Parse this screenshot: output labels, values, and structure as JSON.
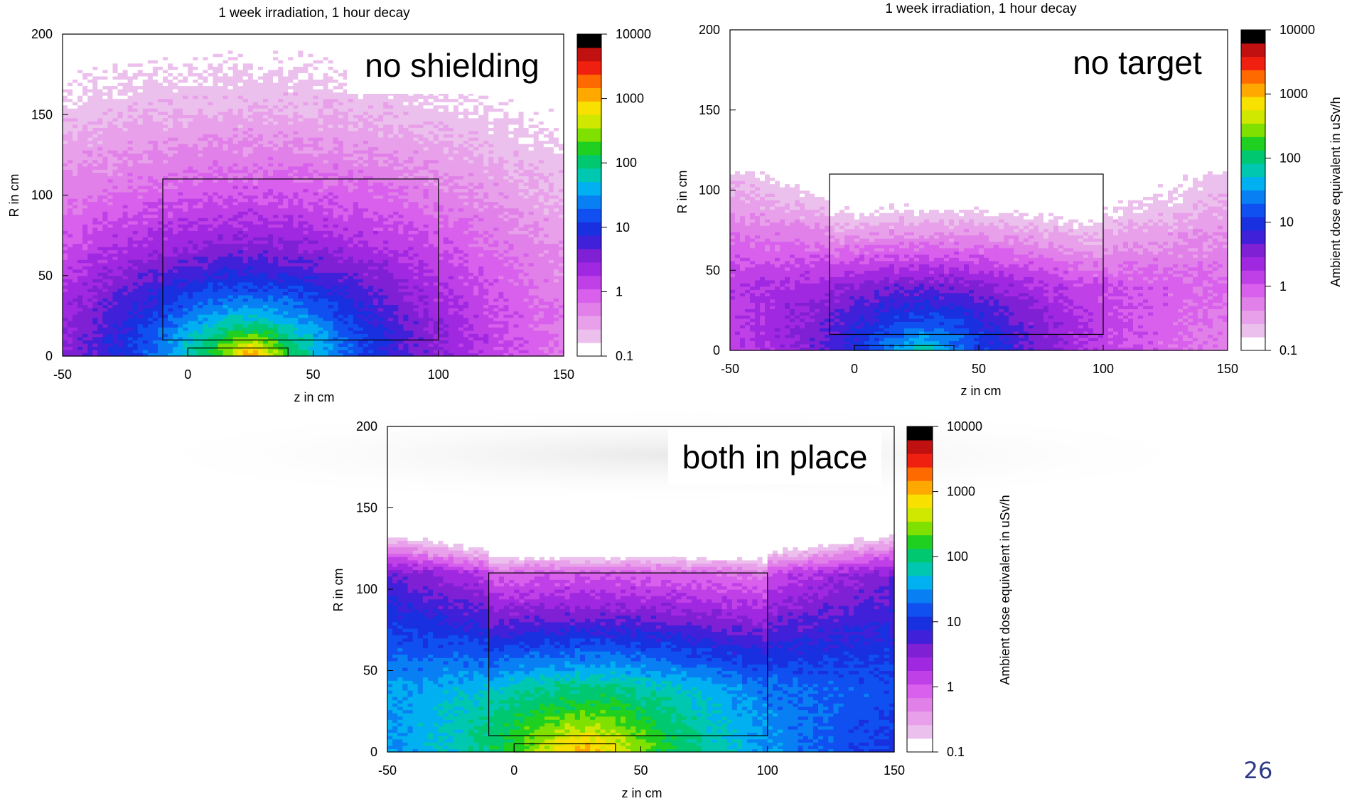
{
  "page_number": "26",
  "colors": {
    "frame": "#000000",
    "label_box_fill": "#ffffff",
    "page_number": "#2f3b86"
  },
  "chart_data": [
    {
      "type": "heatmap",
      "title": "1 week irradiation, 1 hour decay",
      "annotation": "no shielding",
      "xlabel": "z in cm",
      "ylabel": "R in cm",
      "colorbar_label": "",
      "xlim": [
        -50,
        150
      ],
      "ylim": [
        0,
        200
      ],
      "x_ticks": [
        "-50",
        "0",
        "50",
        "100",
        "150"
      ],
      "y_ticks": [
        "0",
        "50",
        "100",
        "150",
        "200"
      ],
      "colorbar_ticks": [
        "0.1",
        "1",
        "10",
        "100",
        "1000",
        "10000"
      ],
      "colorbar_range": [
        0.1,
        10000
      ],
      "colorbar_log": true,
      "grid": false,
      "map": {
        "kind": "free",
        "peak_log10": 3.3,
        "peak_z": 25,
        "peak_r": 0
      },
      "outline_box": {
        "z": [
          -10,
          100
        ],
        "r": [
          10,
          110
        ]
      },
      "target_box": {
        "z": [
          0,
          40
        ],
        "r": [
          0,
          5
        ]
      }
    },
    {
      "type": "heatmap",
      "title": "1 week irradiation, 1 hour decay",
      "annotation": "no target",
      "xlabel": "z in cm",
      "ylabel": "R in cm",
      "colorbar_label": "Ambient dose equivalent in uSv/h",
      "xlim": [
        -50,
        150
      ],
      "ylim": [
        0,
        200
      ],
      "x_ticks": [
        "-50",
        "0",
        "50",
        "100",
        "150"
      ],
      "y_ticks": [
        "0",
        "50",
        "100",
        "150",
        "200"
      ],
      "colorbar_ticks": [
        "0.1",
        "1",
        "10",
        "100",
        "1000",
        "10000"
      ],
      "colorbar_range": [
        0.1,
        10000
      ],
      "colorbar_log": true,
      "grid": false,
      "map": {
        "kind": "shielded",
        "peak_log10": 1.9,
        "peak_z": 28,
        "peak_r": 0
      },
      "outline_box": {
        "z": [
          -10,
          100
        ],
        "r": [
          10,
          110
        ]
      },
      "target_box": {
        "z": [
          0,
          40
        ],
        "r": [
          0,
          3
        ]
      }
    },
    {
      "type": "heatmap",
      "title": "",
      "annotation": "both in place",
      "xlabel": "z in cm",
      "ylabel": "R in cm",
      "colorbar_label": "Ambient dose equivalent in uSv/h",
      "xlim": [
        -50,
        150
      ],
      "ylim": [
        0,
        200
      ],
      "x_ticks": [
        "-50",
        "0",
        "50",
        "100",
        "150"
      ],
      "y_ticks": [
        "0",
        "50",
        "100",
        "150",
        "200"
      ],
      "colorbar_ticks": [
        "0.1",
        "1",
        "10",
        "100",
        "1000",
        "10000"
      ],
      "colorbar_range": [
        0.1,
        10000
      ],
      "colorbar_log": true,
      "grid": false,
      "map": {
        "kind": "shielded",
        "peak_log10": 3.2,
        "peak_z": 28,
        "peak_r": 0
      },
      "outline_box": {
        "z": [
          -10,
          100
        ],
        "r": [
          10,
          110
        ]
      },
      "target_box": {
        "z": [
          0,
          40
        ],
        "r": [
          0,
          5
        ]
      }
    }
  ]
}
